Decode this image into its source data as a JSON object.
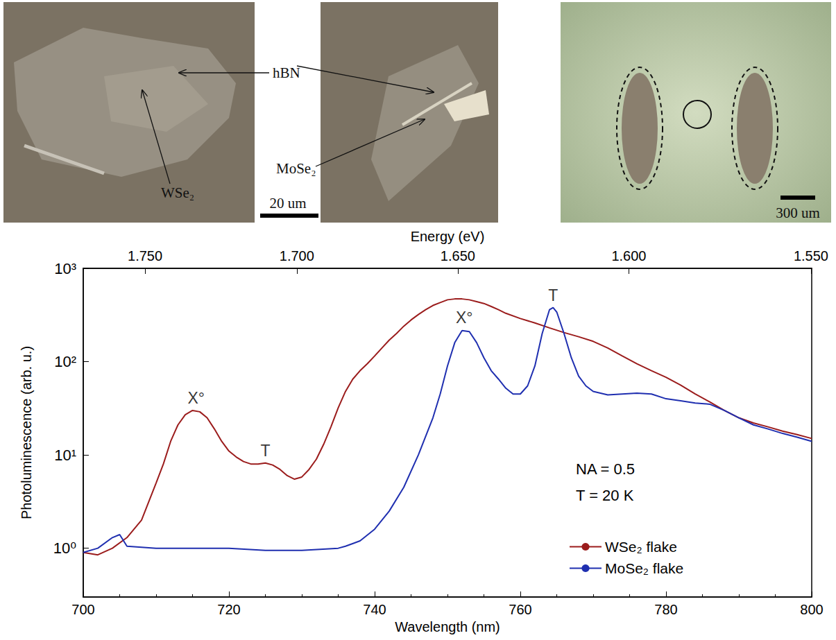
{
  "images": {
    "hbn": "hBN",
    "wse2": "WSe₂",
    "mose2": "MoSe₂",
    "scale_left": "20 um",
    "scale_right": "300 um"
  },
  "chart_data": {
    "type": "line",
    "x_label": "Wavelength (nm)",
    "x2_label": "Energy (eV)",
    "y_label": "Photoluminescence (arb. u.)",
    "log": "y",
    "grid": false,
    "legend": "lower right",
    "xlim": [
      700,
      800
    ],
    "xticks": [
      700,
      720,
      740,
      760,
      780,
      800
    ],
    "x2ticks": [
      {
        "value": 1.75,
        "label": "1.750"
      },
      {
        "value": 1.7,
        "label": "1.700"
      },
      {
        "value": 1.65,
        "label": "1.650"
      },
      {
        "value": 1.6,
        "label": "1.600"
      },
      {
        "value": 1.55,
        "label": "1.550"
      }
    ],
    "ylim": [
      0.3,
      1000
    ],
    "yticks": [
      {
        "value": 1,
        "label": "10⁰"
      },
      {
        "value": 10,
        "label": "10¹"
      },
      {
        "value": 100,
        "label": "10²"
      },
      {
        "value": 1000,
        "label": "10³"
      }
    ],
    "notes": [
      "NA = 0.5",
      "T = 20 K"
    ],
    "annotations": [
      {
        "text": "X°",
        "x": 715.5,
        "y": 30
      },
      {
        "text": "T",
        "x": 725,
        "y": 8.2
      },
      {
        "text": "X°",
        "x": 752.3,
        "y": 220
      },
      {
        "text": "T",
        "x": 764.5,
        "y": 380
      }
    ],
    "series": [
      {
        "name": "WSe₂ flake",
        "color": "#9b1c1c",
        "x": [
          700,
          702,
          704,
          706,
          708,
          710,
          711,
          712,
          713,
          714,
          715,
          716,
          717,
          718,
          719,
          720,
          721,
          722,
          723,
          724,
          725,
          726,
          727,
          728,
          729,
          730,
          731,
          732,
          733,
          734,
          735,
          736,
          737,
          738,
          739,
          740,
          741,
          742,
          743,
          744,
          745,
          746,
          747,
          748,
          749,
          750,
          751,
          752,
          753,
          754,
          755,
          756,
          757,
          758,
          760,
          762,
          764,
          766,
          768,
          770,
          772,
          774,
          776,
          778,
          780,
          782,
          784,
          786,
          788,
          790,
          792,
          794,
          796,
          798,
          800
        ],
        "values": [
          0.9,
          0.85,
          1.0,
          1.3,
          2.0,
          5,
          8,
          14,
          21,
          27,
          30,
          29,
          25,
          19,
          14,
          11,
          9.5,
          8.5,
          8,
          8,
          8.2,
          7.8,
          7,
          6,
          5.5,
          5.8,
          7,
          9,
          13,
          20,
          32,
          48,
          65,
          80,
          95,
          115,
          140,
          170,
          200,
          240,
          280,
          320,
          360,
          400,
          430,
          460,
          470,
          470,
          460,
          440,
          420,
          390,
          360,
          330,
          290,
          260,
          230,
          205,
          185,
          165,
          140,
          115,
          95,
          80,
          68,
          56,
          45,
          37,
          30,
          25,
          22,
          20,
          18,
          16.5,
          15
        ]
      },
      {
        "name": "MoSe₂ flake",
        "color": "#1f2fb0",
        "x": [
          700,
          702,
          704,
          705,
          706,
          710,
          715,
          720,
          725,
          730,
          735,
          736,
          738,
          740,
          742,
          744,
          746,
          748,
          749,
          750,
          751,
          752,
          753,
          754,
          755,
          756,
          757,
          758,
          759,
          760,
          761,
          762,
          763,
          764,
          764.5,
          765,
          766,
          767,
          768,
          769,
          770,
          772,
          774,
          776,
          778,
          780,
          782,
          784,
          786,
          788,
          790,
          792,
          794,
          796,
          798,
          800
        ],
        "values": [
          0.9,
          1.0,
          1.3,
          1.4,
          1.05,
          1.0,
          1.0,
          1.0,
          0.95,
          0.95,
          1.0,
          1.05,
          1.2,
          1.6,
          2.5,
          4.5,
          10,
          25,
          45,
          90,
          160,
          215,
          210,
          160,
          110,
          80,
          65,
          52,
          45,
          45,
          55,
          90,
          200,
          360,
          380,
          340,
          200,
          110,
          70,
          55,
          48,
          44,
          45,
          46,
          45,
          40,
          38,
          36,
          35,
          30,
          25,
          21,
          19,
          17,
          15.5,
          14
        ]
      }
    ]
  }
}
